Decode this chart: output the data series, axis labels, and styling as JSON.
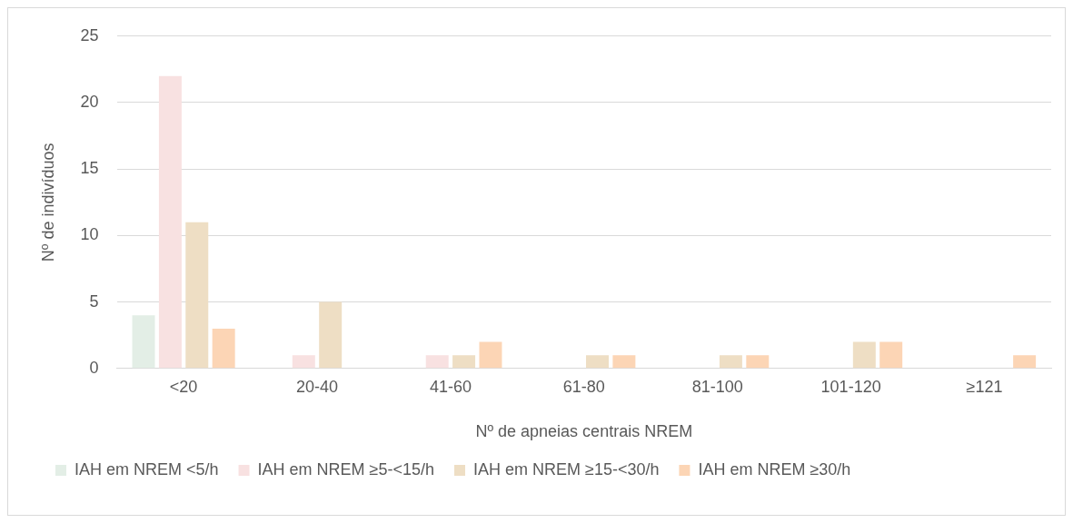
{
  "chart_data": {
    "type": "bar",
    "xlabel": "Nº de apneias centrais NREM",
    "ylabel": "Nº de indivíduos",
    "categories": [
      "<20",
      "20-40",
      "41-60",
      "61-80",
      "81-100",
      "101-120",
      "≥121"
    ],
    "series": [
      {
        "name": "IAH em NREM <5/h",
        "color": "#e3eee6",
        "values": [
          4,
          0,
          0,
          0,
          0,
          0,
          0
        ]
      },
      {
        "name": "IAH em NREM ≥5-<15/h",
        "color": "#f8e1e1",
        "values": [
          22,
          1,
          1,
          0,
          0,
          0,
          0
        ]
      },
      {
        "name": "IAH em NREM ≥15-<30/h",
        "color": "#eedec4",
        "values": [
          11,
          5,
          1,
          1,
          1,
          2,
          0
        ]
      },
      {
        "name": "IAH em NREM ≥30/h",
        "color": "#fcd5b5",
        "values": [
          3,
          0,
          2,
          1,
          1,
          2,
          1
        ]
      }
    ],
    "ylim": [
      0,
      25
    ],
    "yticks": [
      0,
      5,
      10,
      15,
      20,
      25
    ],
    "grid": "y",
    "legend": "bottom"
  }
}
